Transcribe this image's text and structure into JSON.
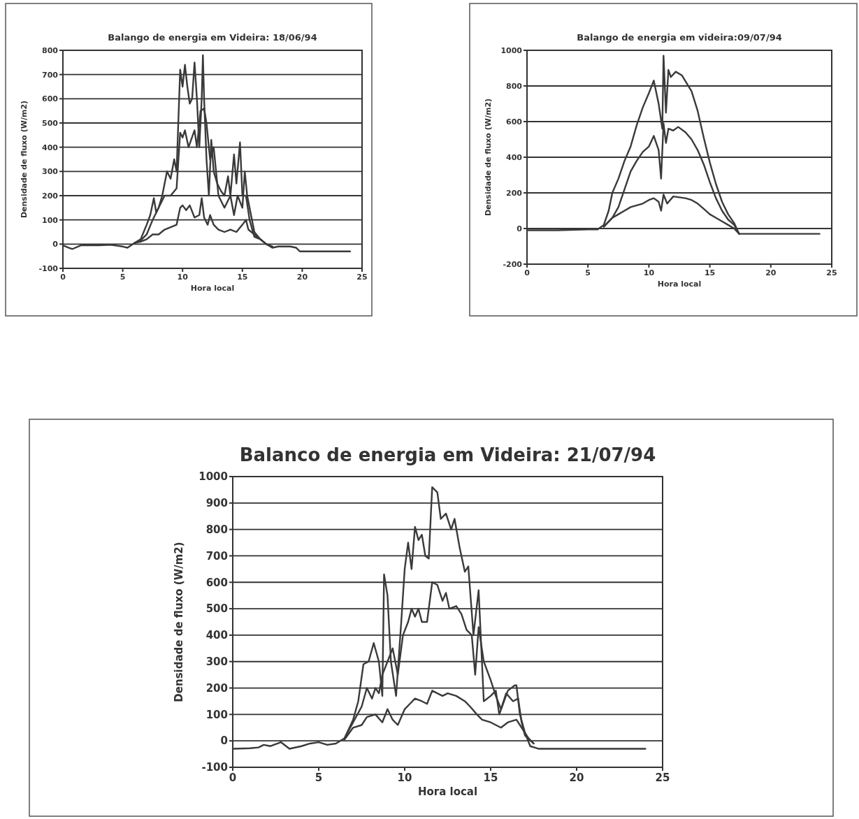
{
  "chart_data": [
    {
      "type": "line",
      "title": "Balango de energia em Videira: 18/06/94",
      "xlabel": "Hora local",
      "ylabel": "Densidade de fluxo (W/m2)",
      "xlim": [
        0,
        25
      ],
      "xticks": [
        0,
        5,
        10,
        15,
        20,
        25
      ],
      "ylim": [
        -100,
        800
      ],
      "yticks": [
        -100,
        0,
        100,
        200,
        300,
        400,
        500,
        600,
        700,
        800
      ],
      "grid": "y",
      "marker": "none",
      "line_style": "solid",
      "series": [
        {
          "color": "#3a3a3a",
          "x": [
            0,
            0.5,
            0.8,
            1.5,
            3,
            4,
            5,
            5.4,
            6,
            6.5,
            7,
            7.3,
            7.6,
            7.8,
            8,
            8.3,
            8.7,
            9,
            9.3,
            9.5,
            9.8,
            10,
            10.2,
            10.4,
            10.6,
            10.8,
            11,
            11.2,
            11.4,
            11.6,
            11.7,
            11.8,
            12,
            12.2,
            12.4,
            12.6,
            12.9,
            13.2,
            13.5,
            13.8,
            14,
            14.3,
            14.5,
            14.8,
            15,
            15.3,
            15.6,
            16,
            16.5,
            17,
            17.5,
            18,
            19,
            19.5,
            19.8,
            20,
            24
          ],
          "values": [
            -5,
            -15,
            -20,
            -5,
            -5,
            -3,
            -10,
            -15,
            5,
            20,
            80,
            120,
            190,
            130,
            150,
            200,
            300,
            270,
            350,
            300,
            720,
            650,
            740,
            650,
            580,
            600,
            750,
            600,
            400,
            600,
            780,
            600,
            350,
            200,
            430,
            300,
            250,
            220,
            200,
            280,
            200,
            370,
            250,
            420,
            200,
            200,
            100,
            30,
            20,
            0,
            -15,
            -10,
            -10,
            -15,
            -30,
            -30,
            -30
          ]
        },
        {
          "color": "#3a3a3a",
          "x": [
            6,
            6.5,
            7,
            7.5,
            8,
            8.5,
            9,
            9.5,
            9.8,
            10,
            10.2,
            10.5,
            11,
            11.2,
            11.5,
            11.8,
            12,
            12.3,
            12.6,
            13,
            13.5,
            14,
            14.3,
            14.6,
            15,
            15.2,
            15.4,
            15.6,
            16,
            16.5,
            17,
            17.5
          ],
          "values": [
            5,
            15,
            40,
            100,
            150,
            200,
            200,
            230,
            460,
            440,
            470,
            400,
            470,
            400,
            550,
            560,
            500,
            350,
            400,
            200,
            150,
            200,
            120,
            200,
            150,
            300,
            200,
            150,
            50,
            20,
            0,
            -10
          ]
        },
        {
          "color": "#3a3a3a",
          "x": [
            6,
            6.5,
            7,
            7.5,
            8,
            8.5,
            9,
            9.5,
            9.8,
            10,
            10.3,
            10.6,
            11,
            11.4,
            11.6,
            11.8,
            12.1,
            12.3,
            12.6,
            13,
            13.5,
            14,
            14.5,
            15,
            15.3,
            15.5,
            16,
            16.5,
            17,
            17.5
          ],
          "values": [
            5,
            10,
            20,
            40,
            40,
            60,
            70,
            80,
            150,
            160,
            140,
            160,
            110,
            120,
            190,
            110,
            80,
            120,
            80,
            60,
            50,
            60,
            50,
            80,
            100,
            60,
            40,
            20,
            0,
            -10
          ]
        }
      ]
    },
    {
      "type": "line",
      "title": "Balango de energia em videira:09/07/94",
      "xlabel": "Hora local",
      "ylabel": "Densidade de fluxo (W/m2)",
      "xlim": [
        0,
        25
      ],
      "xticks": [
        0,
        5,
        10,
        15,
        20,
        25
      ],
      "ylim": [
        -200,
        1000
      ],
      "yticks": [
        -200,
        0,
        200,
        400,
        600,
        800,
        1000
      ],
      "grid": "y",
      "marker": "none",
      "line_style": "solid",
      "series": [
        {
          "color": "#3a3a3a",
          "x": [
            0,
            2.5,
            5,
            5.8,
            6.3,
            6.7,
            7,
            7.5,
            8,
            8.5,
            9,
            9.5,
            10,
            10.4,
            10.8,
            11.1,
            11.2,
            11.4,
            11.6,
            11.8,
            12.2,
            12.7,
            13.5,
            14,
            14.5,
            15,
            15.5,
            16,
            16.5,
            17,
            17.4,
            18,
            24
          ],
          "values": [
            -10,
            -10,
            -5,
            -5,
            20,
            100,
            200,
            280,
            380,
            460,
            580,
            680,
            760,
            830,
            700,
            560,
            970,
            650,
            890,
            850,
            880,
            860,
            770,
            660,
            510,
            370,
            250,
            150,
            80,
            30,
            -30,
            -30,
            -30
          ]
        },
        {
          "color": "#3a3a3a",
          "x": [
            6.3,
            7,
            7.5,
            8,
            8.5,
            9,
            9.5,
            10,
            10.4,
            10.8,
            11,
            11.2,
            11.4,
            11.6,
            12,
            12.4,
            13,
            13.5,
            14,
            14.5,
            15,
            15.5,
            16,
            16.5,
            17,
            17.4
          ],
          "values": [
            10,
            60,
            120,
            220,
            320,
            380,
            430,
            460,
            520,
            440,
            280,
            590,
            480,
            560,
            550,
            570,
            540,
            500,
            440,
            360,
            260,
            170,
            100,
            50,
            20,
            -30
          ]
        },
        {
          "color": "#3a3a3a",
          "x": [
            6.3,
            7,
            7.5,
            8,
            8.5,
            9,
            9.5,
            10,
            10.4,
            10.8,
            11,
            11.2,
            11.5,
            12,
            12.5,
            13,
            13.5,
            14,
            14.5,
            15,
            15.5,
            16,
            16.5,
            17,
            17.4
          ],
          "values": [
            10,
            60,
            80,
            100,
            120,
            130,
            140,
            160,
            170,
            150,
            100,
            190,
            140,
            180,
            175,
            170,
            160,
            140,
            110,
            80,
            60,
            40,
            20,
            0,
            -30
          ]
        }
      ]
    },
    {
      "type": "line",
      "title": "Balanco de energia em Videira: 21/07/94",
      "xlabel": "Hora local",
      "ylabel": "Densidade de fluxo (W/m2)",
      "xlim": [
        0,
        25
      ],
      "xticks": [
        0,
        5,
        10,
        15,
        20,
        25
      ],
      "ylim": [
        -100,
        1000
      ],
      "yticks": [
        -100,
        0,
        100,
        200,
        300,
        400,
        500,
        600,
        700,
        800,
        900,
        1000
      ],
      "grid": "y",
      "marker": "none",
      "line_style": "solid",
      "series": [
        {
          "color": "#3a3a3a",
          "x": [
            0,
            1,
            1.5,
            1.8,
            2.2,
            2.8,
            3.3,
            4,
            4.5,
            5,
            5.5,
            6,
            6.5,
            7,
            7.3,
            7.6,
            7.9,
            8.2,
            8.5,
            8.7,
            8.8,
            9,
            9.2,
            9.5,
            9.8,
            10,
            10.2,
            10.4,
            10.6,
            10.8,
            11,
            11.2,
            11.4,
            11.6,
            11.9,
            12.1,
            12.4,
            12.7,
            12.9,
            13.2,
            13.5,
            13.7,
            14,
            14.3,
            14.6,
            15,
            15.3,
            15.5,
            16,
            16.4,
            16.5,
            16.7,
            17,
            17.3,
            17.8,
            20,
            24
          ],
          "values": [
            -30,
            -28,
            -25,
            -15,
            -20,
            -5,
            -30,
            -20,
            -10,
            -5,
            -15,
            -10,
            10,
            80,
            150,
            290,
            300,
            370,
            300,
            170,
            630,
            550,
            300,
            170,
            450,
            650,
            750,
            650,
            810,
            760,
            780,
            700,
            690,
            960,
            940,
            840,
            860,
            800,
            840,
            730,
            640,
            660,
            400,
            570,
            150,
            170,
            190,
            100,
            190,
            210,
            210,
            100,
            30,
            -20,
            -30,
            -30,
            -30
          ]
        },
        {
          "color": "#3a3a3a",
          "x": [
            6.5,
            7,
            7.5,
            7.8,
            8.1,
            8.3,
            8.5,
            8.7,
            9,
            9.3,
            9.6,
            9.9,
            10.2,
            10.4,
            10.6,
            10.8,
            11,
            11.3,
            11.6,
            11.9,
            12.2,
            12.4,
            12.6,
            13,
            13.3,
            13.6,
            13.9,
            14.1,
            14.3,
            14.6,
            15,
            15.3,
            15.6,
            15.9,
            16.3,
            16.6,
            16.8,
            17,
            17.5
          ],
          "values": [
            10,
            70,
            130,
            200,
            160,
            200,
            180,
            250,
            300,
            350,
            250,
            400,
            450,
            500,
            470,
            500,
            450,
            450,
            600,
            590,
            530,
            560,
            500,
            510,
            480,
            420,
            400,
            250,
            430,
            300,
            230,
            170,
            120,
            180,
            150,
            160,
            70,
            20,
            -10
          ]
        },
        {
          "color": "#3a3a3a",
          "x": [
            6.5,
            7,
            7.5,
            7.8,
            8.3,
            8.7,
            9,
            9.3,
            9.6,
            10,
            10.3,
            10.6,
            11,
            11.3,
            11.6,
            11.9,
            12.2,
            12.5,
            13,
            13.5,
            13.8,
            14.2,
            14.5,
            15,
            15.3,
            15.6,
            16,
            16.5,
            16.8,
            17.2,
            17.5
          ],
          "values": [
            5,
            50,
            60,
            90,
            100,
            70,
            120,
            80,
            60,
            120,
            140,
            160,
            150,
            140,
            190,
            180,
            170,
            180,
            170,
            150,
            130,
            100,
            80,
            70,
            60,
            50,
            70,
            80,
            50,
            10,
            -10
          ]
        }
      ]
    }
  ]
}
